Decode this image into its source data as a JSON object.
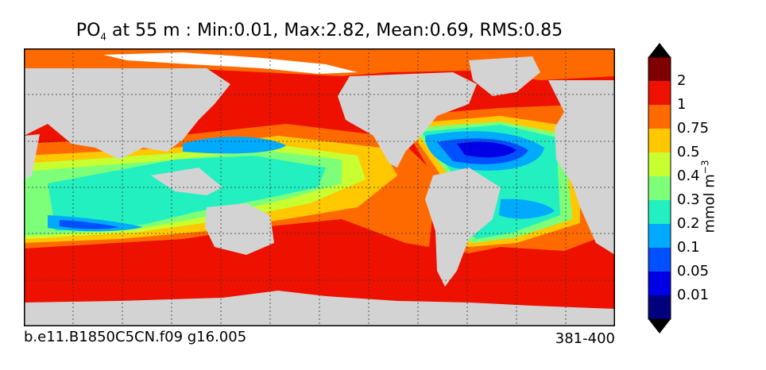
{
  "title": {
    "prefix": "PO",
    "subscript": "4",
    "suffix": " at 55 m : Min:0.01, Max:2.82, Mean:0.69, RMS:0.85"
  },
  "footer": {
    "case_name": "b.e11.B1850C5CN.f09 g16.005",
    "years": "381-400"
  },
  "colorbar": {
    "unit_label": "mmol m",
    "unit_exponent": "−3",
    "levels": [
      "0.01",
      "0.05",
      "0.1",
      "0.2",
      "0.3",
      "0.4",
      "0.5",
      "0.75",
      "1",
      "2"
    ],
    "colors": [
      "#00007f",
      "#0000e6",
      "#0050ff",
      "#00aaff",
      "#22f0c0",
      "#7dff7a",
      "#c8ff30",
      "#ffc800",
      "#ff6a00",
      "#ee1100",
      "#7f0000"
    ]
  },
  "colors": {
    "land": "#d3d3d3",
    "sea_ice": "#ffffff",
    "frame": "#000000"
  }
}
